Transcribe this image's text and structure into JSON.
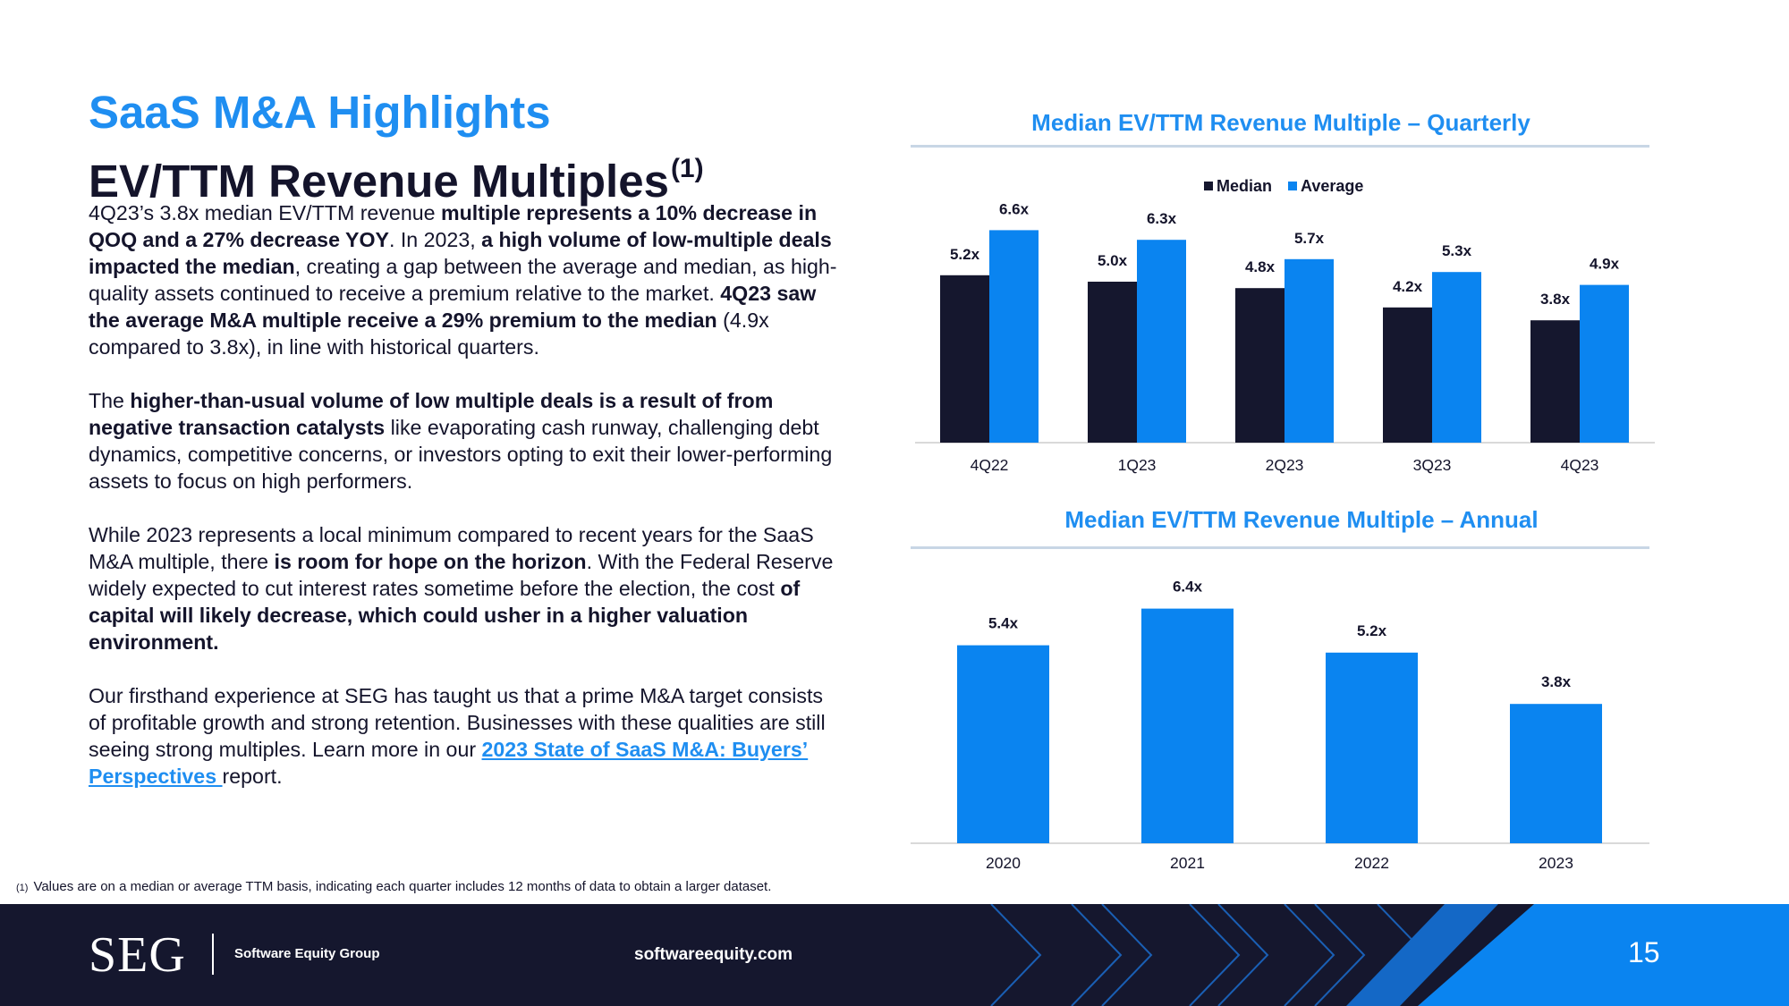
{
  "heading": {
    "title": "SaaS M&A Highlights",
    "subtitle": "EV/TTM Revenue Multiples",
    "subtitle_sup": "(1)"
  },
  "body": {
    "p1": {
      "t1": "4Q23’s 3.8x median EV/TTM revenue ",
      "b1": "multiple represents a 10% decrease in QOQ and a 27% decrease YOY",
      "t2": ". In 2023, ",
      "b2": "a high volume of low-multiple deals impacted the median",
      "t3": ", creating a gap between the average and median, as high-quality assets continued to receive a premium relative to the market. ",
      "b3": "4Q23 saw the average M&A multiple receive a 29% premium to the median",
      "t4": " (4.9x compared to 3.8x), in line with historical quarters."
    },
    "p2": {
      "t1": "The ",
      "b1": "higher-than-usual volume of low multiple deals is a result of from negative transaction catalysts",
      "t2": " like evaporating cash runway, challenging debt dynamics, competitive concerns, or investors opting to exit their lower-performing assets to focus on high performers."
    },
    "p3": {
      "t1": "While 2023 represents a local minimum compared to recent years for the SaaS M&A multiple, there ",
      "b1": "is room for hope on the horizon",
      "t2": ". With the Federal Reserve widely expected to cut interest rates sometime before the election, the cost ",
      "b2": "of capital will likely decrease, which could usher in a higher valuation environment."
    },
    "p4": {
      "t1": "Our firsthand experience at SEG has taught us that a prime M&A target consists of profitable growth and strong retention. Businesses with these qualities are still seeing strong multiples. Learn more in our ",
      "link": "2023 State of SaaS M&A: Buyers’ Perspectives ",
      "t2": "report."
    }
  },
  "footnote": {
    "mark": "(1)",
    "text": "Values are on a median or average TTM basis, indicating each quarter includes 12 months of data to obtain a larger dataset."
  },
  "chart_data": [
    {
      "type": "bar",
      "title": "Median EV/TTM Revenue Multiple – Quarterly",
      "categories": [
        "4Q22",
        "1Q23",
        "2Q23",
        "3Q23",
        "4Q23"
      ],
      "series": [
        {
          "name": "Median",
          "color": "#15172e",
          "values": [
            5.2,
            5.0,
            4.8,
            4.2,
            3.8
          ],
          "labels": [
            "5.2x",
            "5.0x",
            "4.8x",
            "4.2x",
            "3.8x"
          ]
        },
        {
          "name": "Average",
          "color": "#0a84f0",
          "values": [
            6.6,
            6.3,
            5.7,
            5.3,
            4.9
          ],
          "labels": [
            "6.6x",
            "6.3x",
            "5.7x",
            "5.3x",
            "4.9x"
          ]
        }
      ],
      "legend": "top-center",
      "ylim": [
        0,
        7
      ],
      "grid": false
    },
    {
      "type": "bar",
      "title": "Median EV/TTM Revenue Multiple – Annual",
      "categories": [
        "2020",
        "2021",
        "2022",
        "2023"
      ],
      "series": [
        {
          "name": "Median",
          "color": "#0a84f0",
          "values": [
            5.4,
            6.4,
            5.2,
            3.8
          ],
          "labels": [
            "5.4x",
            "6.4x",
            "5.2x",
            "3.8x"
          ]
        }
      ],
      "ylim": [
        0,
        7
      ],
      "grid": false
    }
  ],
  "footer": {
    "logo": "SEG",
    "company": "Software Equity Group",
    "website": "softwareequity.com",
    "page": "15"
  },
  "colors": {
    "brand_blue": "#1f8ef1",
    "navy": "#15172e",
    "bar_blue": "#0a84f0"
  }
}
